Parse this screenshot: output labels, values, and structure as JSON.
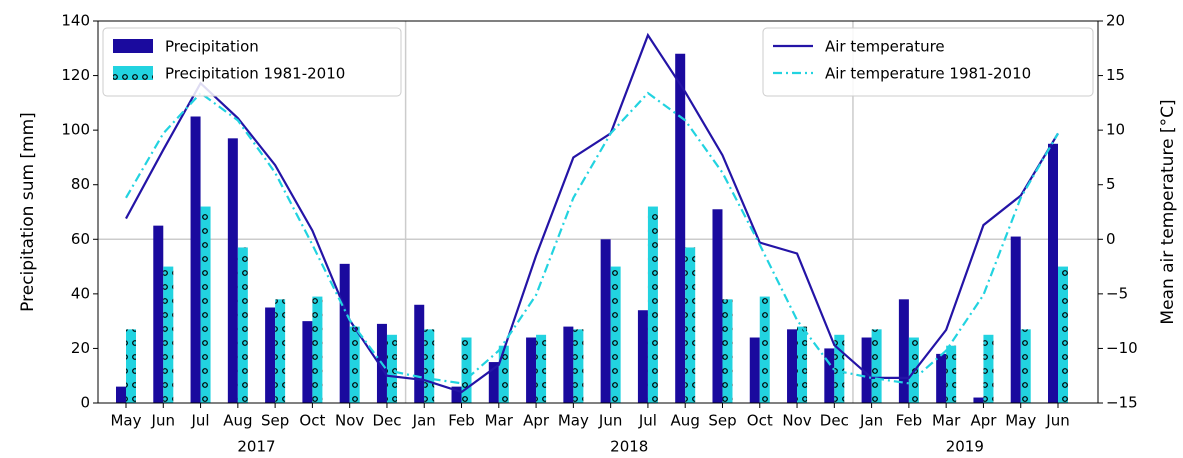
{
  "chart_data": {
    "type": "bar",
    "y_label": "Precipitation sum [mm]",
    "y2_label": "Mean air temperature [°C]",
    "categories": [
      "May",
      "Jun",
      "Jul",
      "Aug",
      "Sep",
      "Oct",
      "Nov",
      "Dec",
      "Jan",
      "Feb",
      "Mar",
      "Apr",
      "May",
      "Jun",
      "Jul",
      "Aug",
      "Sep",
      "Oct",
      "Nov",
      "Dec",
      "Jan",
      "Feb",
      "Mar",
      "Apr",
      "May",
      "Jun"
    ],
    "x_groups": [
      {
        "label": "2017",
        "size": 8
      },
      {
        "label": "2018",
        "size": 12
      },
      {
        "label": "2019",
        "size": 6
      }
    ],
    "series": [
      {
        "name": "Precipitation",
        "type": "bar",
        "color": "#1a0a9e",
        "axis": "y",
        "values": [
          6,
          65,
          105,
          97,
          35,
          30,
          51,
          29,
          36,
          6,
          15,
          24,
          28,
          60,
          34,
          128,
          71,
          24,
          27,
          20,
          24,
          38,
          18,
          2,
          61,
          95
        ]
      },
      {
        "name": "Precipitation 1981-2010",
        "type": "bar",
        "color": "#22d3e0",
        "hatch": "circles",
        "axis": "y",
        "values": [
          27,
          50,
          72,
          57,
          38,
          39,
          28,
          25,
          27,
          24,
          21,
          25,
          27,
          50,
          72,
          57,
          38,
          39,
          28,
          25,
          27,
          24,
          21,
          25,
          27,
          50
        ]
      },
      {
        "name": "Air temperature",
        "type": "line",
        "color": "#2414a6",
        "linestyle": "solid",
        "axis": "y2",
        "values": [
          1.9,
          8.2,
          14.3,
          11.1,
          6.8,
          0.8,
          -7.4,
          -12.5,
          -12.9,
          -14.0,
          -11.5,
          -1.5,
          7.5,
          9.7,
          18.7,
          13.5,
          7.7,
          -0.3,
          -1.3,
          -9.7,
          -12.7,
          -12.7,
          -8.3,
          1.3,
          4.0,
          9.7
        ]
      },
      {
        "name": "Air temperature 1981-2010",
        "type": "line",
        "color": "#22d3e0",
        "linestyle": "dashdot",
        "axis": "y2",
        "values": [
          3.8,
          9.7,
          13.4,
          10.9,
          6.1,
          -0.5,
          -7.4,
          -12.0,
          -12.7,
          -13.2,
          -10.2,
          -5.1,
          3.8,
          9.7,
          13.4,
          10.9,
          6.1,
          -0.5,
          -7.4,
          -12.0,
          -12.7,
          -13.2,
          -10.2,
          -5.1,
          3.8,
          9.7
        ]
      }
    ],
    "ylim": [
      0,
      140
    ],
    "yticks": [
      0,
      20,
      40,
      60,
      80,
      100,
      120,
      140
    ],
    "y2lim": [
      -15,
      20
    ],
    "y2ticks": [
      {
        "value": -15,
        "label": "−15"
      },
      {
        "value": -10,
        "label": "−10"
      },
      {
        "value": -5,
        "label": "−5"
      },
      0,
      5,
      10,
      15,
      20
    ],
    "reference_line": {
      "axis": "y2",
      "value": 0
    },
    "group_separators": true,
    "legends": {
      "y": "upper left",
      "y2": "upper right"
    }
  }
}
